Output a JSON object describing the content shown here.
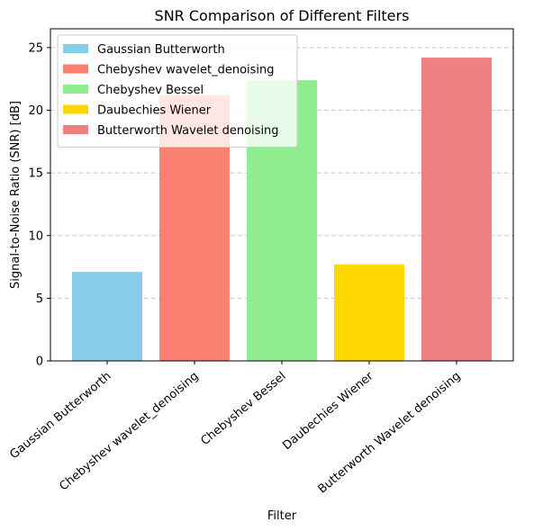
{
  "chart_data": {
    "type": "bar",
    "title": "SNR Comparison of Different Filters",
    "xlabel": "Filter",
    "ylabel": "Signal-to-Noise Ratio (SNR) [dB]",
    "categories": [
      "Gaussian Butterworth",
      "Chebyshev wavelet_denoising",
      "Chebyshev Bessel",
      "Daubechies Wiener",
      "Butterworth Wavelet denoising"
    ],
    "values": [
      7.1,
      21.2,
      22.4,
      7.7,
      24.2
    ],
    "colors": [
      "#87ceeb",
      "#fa8072",
      "#90ee90",
      "#ffd700",
      "#f08080"
    ],
    "ylim": [
      0,
      26.5
    ],
    "yticks": [
      0,
      5,
      10,
      15,
      20,
      25
    ],
    "grid": "y-dashed",
    "legend_position": "top-left"
  }
}
